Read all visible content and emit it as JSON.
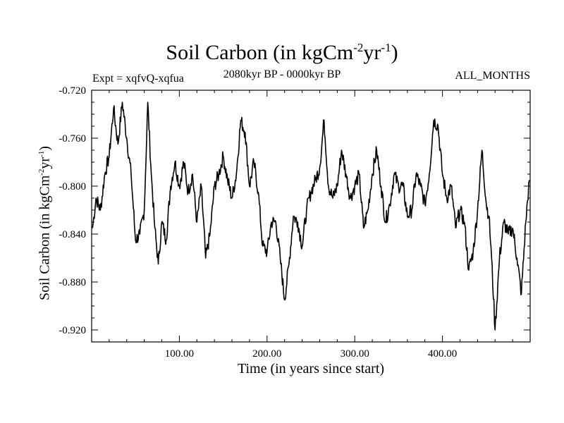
{
  "chart_data": {
    "type": "line",
    "title_main": "Soil Carbon (in kgCm",
    "title_exp1": "-2",
    "title_mid": "yr",
    "title_exp2": "-1",
    "title_end": ")",
    "subtitle": "2080kyr BP - 0000kyr BP",
    "expt_label": "Expt = xqfvQ-xqfua",
    "months_label": "ALL_MONTHS",
    "xlabel": "Time (in years since start)",
    "ylabel_main": "Soil Carbon (in kgCm",
    "ylabel_exp1": "-2",
    "ylabel_mid": "yr",
    "ylabel_exp2": "-1",
    "ylabel_end": ")",
    "xlim": [
      0,
      500
    ],
    "ylim": [
      -0.93,
      -0.72
    ],
    "x_ticks": [
      100,
      200,
      300,
      400
    ],
    "x_tick_labels": [
      "100.00",
      "200.00",
      "300.00",
      "400.00"
    ],
    "y_ticks": [
      -0.72,
      -0.76,
      -0.8,
      -0.84,
      -0.88,
      -0.92
    ],
    "y_tick_labels": [
      "-0.720",
      "-0.760",
      "-0.800",
      "-0.840",
      "-0.880",
      "-0.920"
    ],
    "series": [
      {
        "name": "Soil Carbon",
        "color": "#000000",
        "x": [
          1,
          5,
          10,
          15,
          20,
          25,
          30,
          35,
          40,
          45,
          50,
          55,
          60,
          64,
          68,
          72,
          76,
          80,
          85,
          90,
          95,
          100,
          105,
          110,
          115,
          120,
          125,
          130,
          135,
          140,
          145,
          150,
          155,
          160,
          165,
          170,
          175,
          180,
          185,
          190,
          195,
          200,
          205,
          210,
          215,
          220,
          225,
          230,
          235,
          240,
          245,
          250,
          255,
          260,
          265,
          270,
          275,
          280,
          285,
          290,
          295,
          300,
          305,
          310,
          315,
          320,
          325,
          330,
          335,
          340,
          345,
          350,
          355,
          360,
          365,
          370,
          375,
          380,
          385,
          390,
          395,
          400,
          405,
          410,
          415,
          420,
          425,
          430,
          435,
          440,
          445,
          450,
          453,
          456,
          460,
          465,
          470,
          475,
          480,
          485,
          490,
          495,
          499
        ],
        "values": [
          -0.835,
          -0.81,
          -0.82,
          -0.79,
          -0.775,
          -0.735,
          -0.765,
          -0.73,
          -0.76,
          -0.79,
          -0.845,
          -0.84,
          -0.82,
          -0.73,
          -0.79,
          -0.835,
          -0.865,
          -0.83,
          -0.845,
          -0.8,
          -0.78,
          -0.8,
          -0.78,
          -0.805,
          -0.79,
          -0.83,
          -0.8,
          -0.86,
          -0.84,
          -0.8,
          -0.79,
          -0.775,
          -0.795,
          -0.81,
          -0.79,
          -0.745,
          -0.755,
          -0.8,
          -0.78,
          -0.805,
          -0.85,
          -0.855,
          -0.83,
          -0.83,
          -0.86,
          -0.895,
          -0.865,
          -0.825,
          -0.83,
          -0.85,
          -0.82,
          -0.805,
          -0.795,
          -0.785,
          -0.745,
          -0.8,
          -0.81,
          -0.8,
          -0.77,
          -0.79,
          -0.81,
          -0.8,
          -0.79,
          -0.835,
          -0.82,
          -0.79,
          -0.77,
          -0.8,
          -0.83,
          -0.815,
          -0.79,
          -0.8,
          -0.8,
          -0.825,
          -0.82,
          -0.79,
          -0.8,
          -0.815,
          -0.79,
          -0.745,
          -0.75,
          -0.79,
          -0.81,
          -0.8,
          -0.835,
          -0.82,
          -0.83,
          -0.87,
          -0.855,
          -0.82,
          -0.77,
          -0.815,
          -0.825,
          -0.86,
          -0.92,
          -0.86,
          -0.83,
          -0.84,
          -0.835,
          -0.86,
          -0.89,
          -0.83,
          -0.795
        ]
      }
    ]
  }
}
